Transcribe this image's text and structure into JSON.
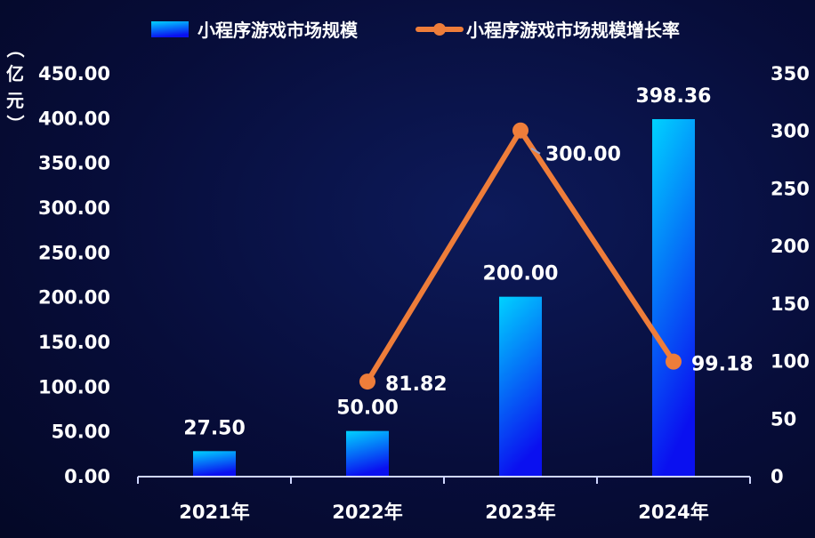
{
  "chart_data": {
    "type": "bar+line",
    "categories": [
      "2021年",
      "2022年",
      "2023年",
      "2024年"
    ],
    "series": [
      {
        "name": "小程序游戏市场规模",
        "type": "bar",
        "axis": "left",
        "values": [
          27.5,
          50.0,
          200.0,
          398.36
        ]
      },
      {
        "name": "小程序游戏市场规模增长率",
        "type": "line",
        "axis": "right",
        "values": [
          null,
          81.82,
          300.0,
          99.18
        ]
      }
    ],
    "ylabel": "（亿元）",
    "ylim_left": [
      0,
      450
    ],
    "yticks_left": [
      "0.00",
      "50.00",
      "100.00",
      "150.00",
      "200.00",
      "250.00",
      "300.00",
      "350.00",
      "400.00",
      "450.00"
    ],
    "ylim_right": [
      0,
      350
    ],
    "yticks_right": [
      "0",
      "50",
      "100",
      "150",
      "200",
      "250",
      "300",
      "350"
    ],
    "bar_labels": [
      "27.50",
      "50.00",
      "200.00",
      "398.36"
    ],
    "line_labels": [
      "",
      "81.82",
      "300.00",
      "99.18"
    ],
    "legend_position": "top",
    "grid": false,
    "colors": {
      "bar_top": "#00d2ff",
      "bar_bottom": "#0a10f0",
      "line": "#ee7d3a",
      "text": "#ffffff"
    }
  }
}
